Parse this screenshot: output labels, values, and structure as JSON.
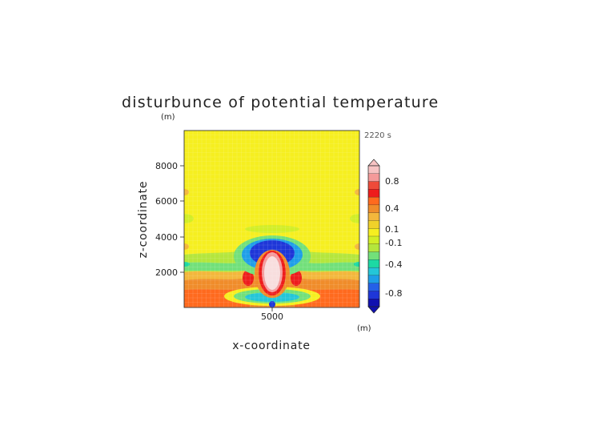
{
  "chart_data": {
    "type": "heatmap",
    "title": "disturbunce of potential temperature",
    "xlabel": "x-coordinate",
    "ylabel": "z-coordinate",
    "x_unit": "(m)",
    "y_unit": "(m)",
    "time_label": "2220 s",
    "xlim": [
      0,
      10000
    ],
    "ylim": [
      0,
      10000
    ],
    "x_ticks": [
      5000
    ],
    "y_ticks": [
      2000,
      4000,
      6000,
      8000
    ],
    "background_value": 0.0,
    "features": [
      {
        "name": "warm core",
        "x": 5000,
        "z": 2200,
        "value": 1.0
      },
      {
        "name": "cold cap above core",
        "x": 5000,
        "z": 3550,
        "value": -0.6
      },
      {
        "name": "warm surface layer",
        "x": 5000,
        "z": 900,
        "value": 0.4
      },
      {
        "name": "cold pool near ground",
        "x": 5000,
        "z": 300,
        "value": -0.3
      },
      {
        "name": "cool band",
        "x": 5000,
        "z": 2800,
        "value": -0.2
      },
      {
        "name": "cool band aloft",
        "x": 5000,
        "z": 4400,
        "value": -0.1
      }
    ],
    "colorbar": {
      "labels": [
        "0.8",
        "0.4",
        "0.1",
        "-0.1",
        "-0.4",
        "-0.8"
      ],
      "colors": [
        "#f7c3c3",
        "#f49a9a",
        "#ee4a3a",
        "#ee1c1c",
        "#ff6a1e",
        "#f08c2a",
        "#f3b73c",
        "#f0d22a",
        "#f6ef20",
        "#d2ee26",
        "#b4e63c",
        "#72e07a",
        "#1cd9a4",
        "#24c6d8",
        "#1e9ee8",
        "#2460e8",
        "#1e36d8",
        "#1010b0"
      ]
    }
  }
}
